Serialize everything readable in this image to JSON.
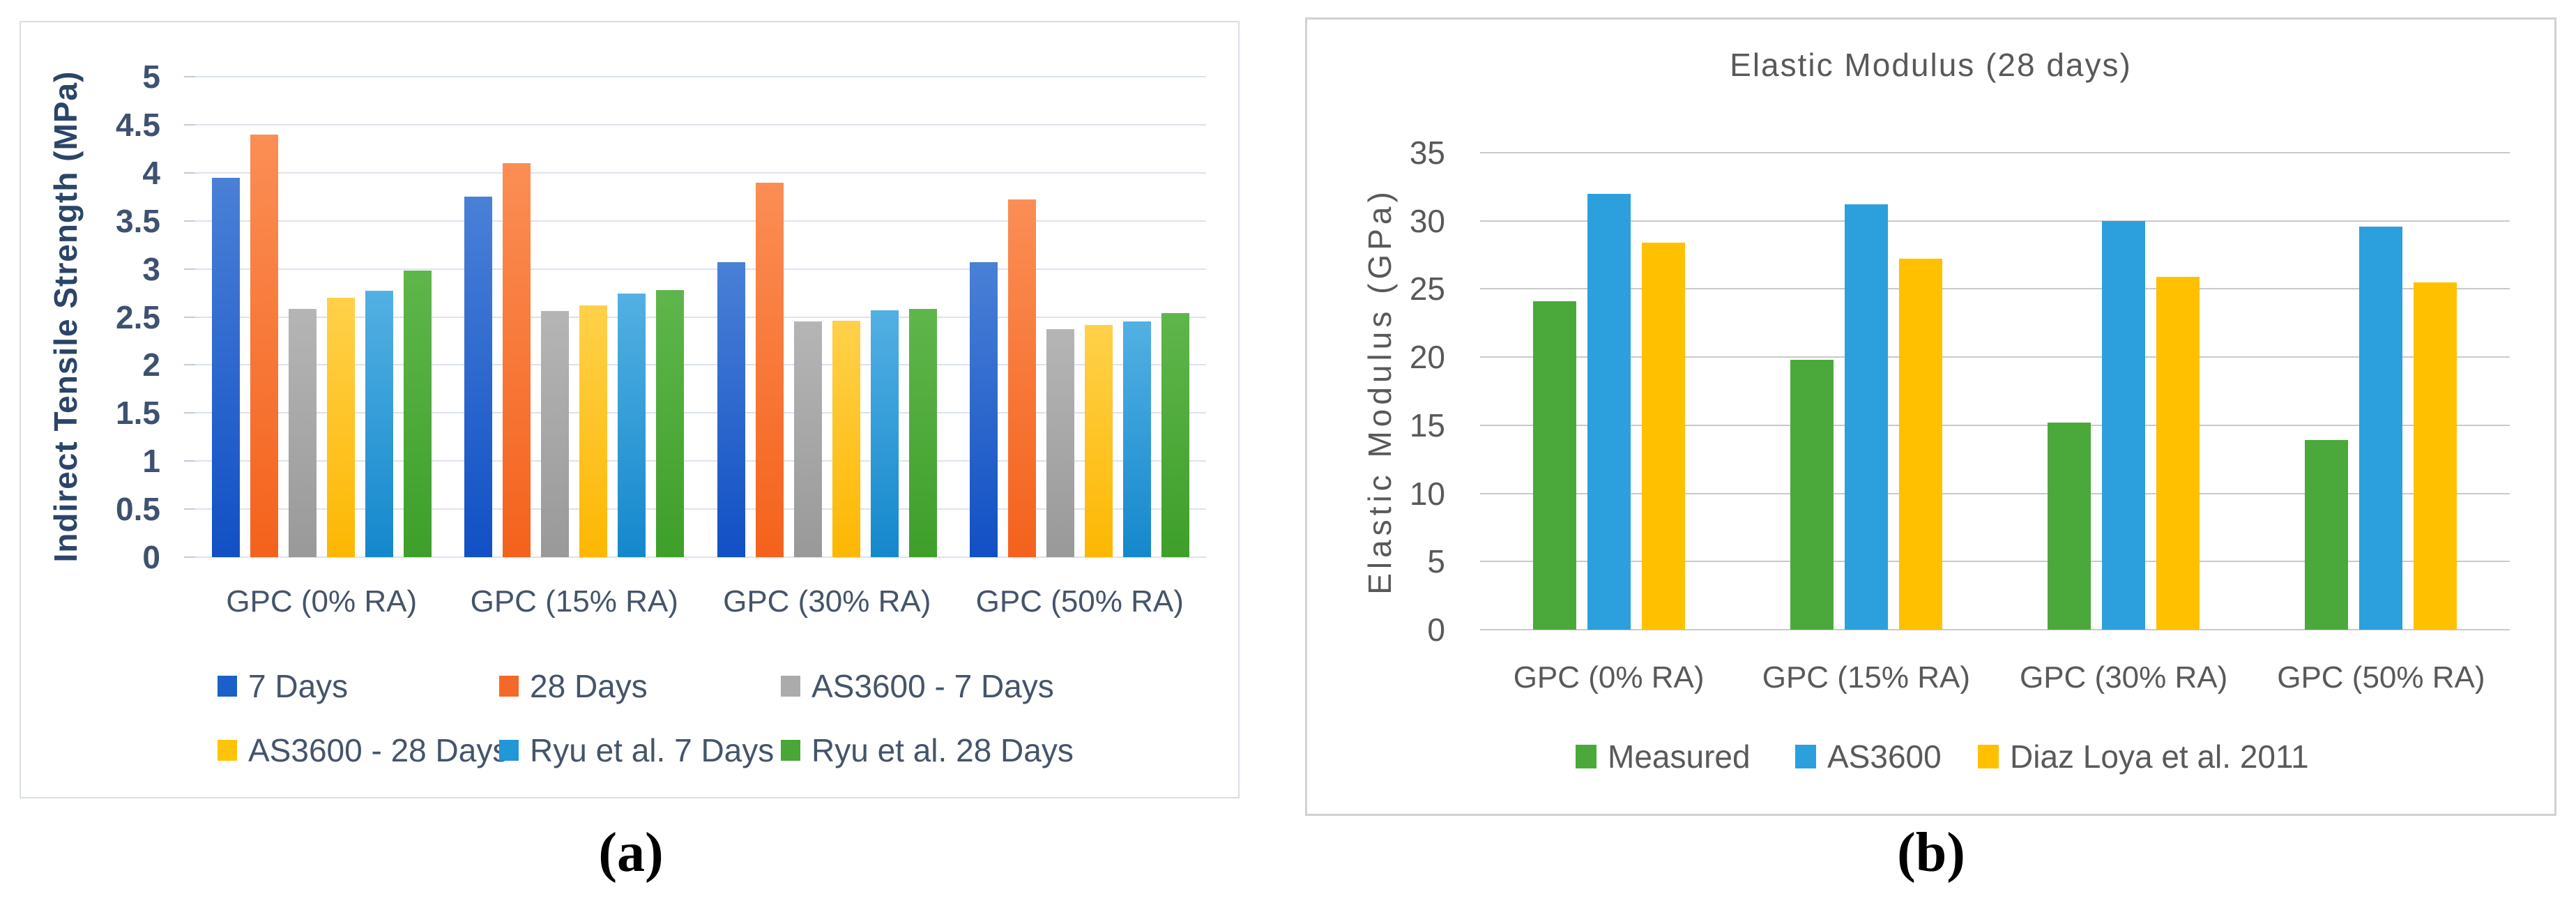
{
  "captions": {
    "a": "(a)",
    "b": "(b)"
  },
  "chart_data": [
    {
      "type": "bar",
      "title": "",
      "ylabel": "Indirect Tensile Strength (MPa)",
      "xlabel": "",
      "ylim": [
        0,
        5
      ],
      "ytick_step": 0.5,
      "yticks": [
        "0",
        "0.5",
        "1",
        "1.5",
        "2",
        "2.5",
        "3",
        "3.5",
        "4",
        "4.5",
        "5"
      ],
      "categories": [
        "GPC (0% RA)",
        "GPC (15% RA)",
        "GPC (30% RA)",
        "GPC (50% RA)"
      ],
      "grid": true,
      "legend_position": "bottom-two-rows",
      "gridline_color": "#DCE2ED",
      "text_color": "#44546A",
      "series": [
        {
          "name": "7 Days",
          "color": "#1A60C8",
          "gradient": [
            "#4A80D6",
            "#1150C5"
          ],
          "values": [
            3.95,
            3.75,
            3.07,
            3.07
          ]
        },
        {
          "name": "28 Days",
          "color": "#F4692A",
          "gradient": [
            "#FB8E55",
            "#F4621C"
          ],
          "values": [
            4.4,
            4.1,
            3.9,
            3.72
          ]
        },
        {
          "name": "AS3600 - 7 Days",
          "color": "#ABABAB",
          "gradient": [
            "#B5B5B5",
            "#999999"
          ],
          "values": [
            2.58,
            2.56,
            2.45,
            2.37
          ]
        },
        {
          "name": "AS3600 - 28 Days",
          "color": "#FFC40A",
          "gradient": [
            "#FFD14A",
            "#FDB702"
          ],
          "values": [
            2.7,
            2.62,
            2.46,
            2.42
          ]
        },
        {
          "name": "Ryu et al. 7 Days",
          "color": "#2196D9",
          "gradient": [
            "#53B0E3",
            "#1488CC"
          ],
          "values": [
            2.77,
            2.74,
            2.57,
            2.45
          ]
        },
        {
          "name": "Ryu et al. 28 Days",
          "color": "#4AA636",
          "gradient": [
            "#5FB64B",
            "#3E9F2A"
          ],
          "values": [
            2.98,
            2.78,
            2.58,
            2.54
          ]
        }
      ]
    },
    {
      "type": "bar",
      "title": "Elastic Modulus (28 days)",
      "ylabel": "Elastic Modulus (GPa)",
      "xlabel": "",
      "ylim": [
        0,
        35
      ],
      "ytick_step": 5,
      "yticks": [
        "0",
        "5",
        "10",
        "15",
        "20",
        "25",
        "30",
        "35"
      ],
      "categories": [
        "GPC (0% RA)",
        "GPC (15% RA)",
        "GPC (30% RA)",
        "GPC (50% RA)"
      ],
      "grid": true,
      "legend_position": "bottom",
      "gridline_color": "#C9C9C9",
      "text_color": "#595959",
      "series": [
        {
          "name": "Measured",
          "color": "#4BA93B",
          "values": [
            24.1,
            19.8,
            15.2,
            13.9
          ]
        },
        {
          "name": "AS3600",
          "color": "#2BA0DC",
          "values": [
            32.0,
            31.2,
            30.0,
            29.6
          ]
        },
        {
          "name": "Diaz Loya et al. 2011",
          "color": "#FFC000",
          "values": [
            28.4,
            27.2,
            25.9,
            25.5
          ]
        }
      ]
    }
  ]
}
